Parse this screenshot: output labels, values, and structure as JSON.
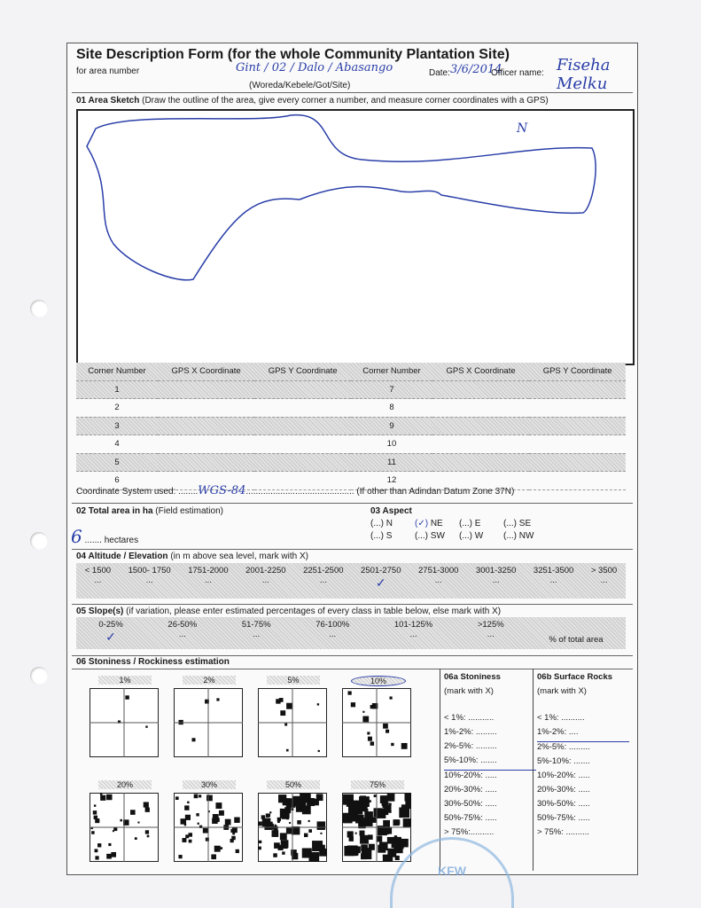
{
  "form": {
    "title": "Site Description Form (for the whole Community Plantation Site)",
    "area_number_label": "for area number",
    "area_number_hint": "(Woreda/Kebele/Got/Site)",
    "area_number_value": "Gint / 02 / Dalo / Abasango",
    "date_label": "Date:",
    "date_value": "3/6/2014",
    "officer_label": "Officer name:",
    "officer_value": "Fiseha Melku"
  },
  "s01": {
    "title": "01 Area Sketch",
    "desc": "(Draw the outline of the area, give every corner a number, and measure corner coordinates with a GPS)",
    "north_mark": "N"
  },
  "corners": {
    "headers": [
      "Corner Number",
      "GPS X Coordinate",
      "GPS Y Coordinate",
      "Corner Number",
      "GPS X Coordinate",
      "GPS Y Coordinate"
    ],
    "left": [
      "1",
      "2",
      "3",
      "4",
      "5",
      "6"
    ],
    "right": [
      "7",
      "8",
      "9",
      "10",
      "11",
      "12"
    ]
  },
  "coord": {
    "label": "Coordinate System used:",
    "value": "WGS-84",
    "note": "(If other than Adindan Datum Zone 37N)"
  },
  "s02": {
    "title": "02 Total area in ha",
    "desc": "(Field estimation)",
    "value": "6",
    "unit": "hectares"
  },
  "s03": {
    "title": "03 Aspect",
    "options": [
      "N",
      "NE",
      "E",
      "SE",
      "S",
      "SW",
      "W",
      "NW"
    ],
    "selected": "NE"
  },
  "s04": {
    "title": "04 Altitude / Elevation",
    "desc": "(in m above sea level, mark with X)",
    "classes": [
      "< 1500",
      "1500- 1750",
      "1751-2000",
      "2001-2250",
      "2251-2500",
      "2501-2750",
      "2751-3000",
      "3001-3250",
      "3251-3500",
      "> 3500"
    ],
    "selected": "2501-2750"
  },
  "s05": {
    "title": "05 Slope(s)",
    "desc": "(if variation, please enter estimated percentages of every class in table below, else mark with X)",
    "classes": [
      "0-25%",
      "26-50%",
      "51-75%",
      "76-100%",
      "101-125%",
      ">125%"
    ],
    "selected": "0-25%",
    "total_label": "% of total area"
  },
  "s06": {
    "title": "06 Stoniness / Rockiness estimation",
    "patterns": [
      "1%",
      "2%",
      "5%",
      "10%",
      "20%",
      "30%",
      "50%",
      "75%"
    ],
    "circled": "10%",
    "a": {
      "title": "06a Stoniness",
      "hint": "(mark with X)",
      "items": [
        "< 1%: ...........",
        "1%-2%: .........",
        "2%-5%: .........",
        "5%-10%: .......",
        "10%-20%: .....",
        "20%-30%: .....",
        "30%-50%: .....",
        "50%-75%: .....",
        "> 75%:.........."
      ],
      "selected": "5%-10%: ......."
    },
    "b": {
      "title": "06b Surface Rocks",
      "hint": "(mark with X)",
      "items": [
        "< 1%: ..........",
        "1%-2%: ....",
        "2%-5%: .........",
        "5%-10%: .......",
        "10%-20%: .....",
        "20%-30%: .....",
        "30%-50%: .....",
        "50%-75%: .....",
        "> 75%: .........."
      ],
      "selected": "1%-2%: ...."
    }
  },
  "stamp": {
    "text": "KFW"
  },
  "colors": {
    "ink": "#2a3ea8",
    "stamp": "#8fb8e0"
  }
}
